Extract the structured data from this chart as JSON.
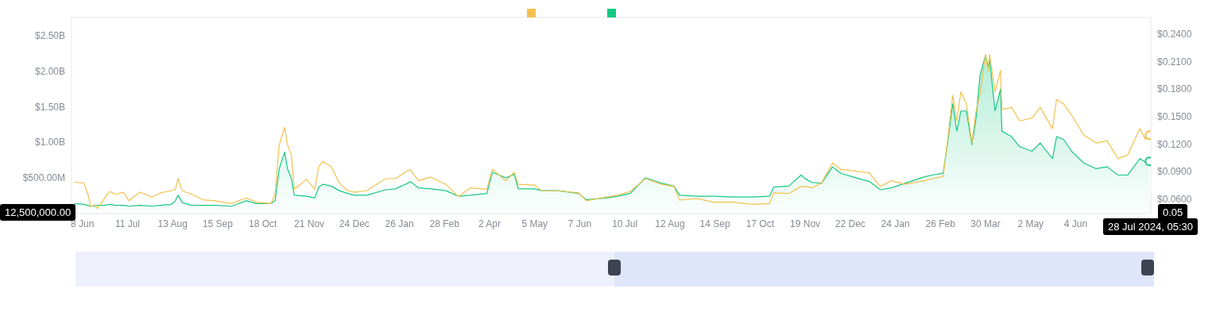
{
  "chart_data": {
    "type": "line",
    "x": [
      "2022-06-02",
      "2022-06-09",
      "2022-06-12",
      "2022-06-14",
      "2022-06-17",
      "2022-06-19",
      "2022-06-24",
      "2022-06-28",
      "2022-07-02",
      "2022-07-08",
      "2022-07-12",
      "2022-07-20",
      "2022-07-29",
      "2022-08-04",
      "2022-08-12",
      "2022-08-15",
      "2022-08-17",
      "2022-08-20",
      "2022-08-27",
      "2022-09-05",
      "2022-09-13",
      "2022-09-25",
      "2022-10-06",
      "2022-10-13",
      "2022-10-24",
      "2022-10-27",
      "2022-10-30",
      "2022-11-03",
      "2022-11-05",
      "2022-11-08",
      "2022-11-10",
      "2022-11-19",
      "2022-11-25",
      "2022-11-28",
      "2022-12-01",
      "2022-12-07",
      "2022-12-13",
      "2022-12-19",
      "2022-12-24",
      "2023-01-02",
      "2023-01-16",
      "2023-01-23",
      "2023-02-01",
      "2023-02-03",
      "2023-02-09",
      "2023-02-18",
      "2023-03-01",
      "2023-03-10",
      "2023-03-19",
      "2023-03-31",
      "2023-04-04",
      "2023-04-14",
      "2023-04-20",
      "2023-04-23",
      "2023-05-05",
      "2023-05-10",
      "2023-05-22",
      "2023-06-06",
      "2023-06-12",
      "2023-06-26",
      "2023-07-05",
      "2023-07-14",
      "2023-07-25",
      "2023-08-06",
      "2023-08-15",
      "2023-08-19",
      "2023-09-01",
      "2023-09-13",
      "2023-09-27",
      "2023-10-12",
      "2023-10-24",
      "2023-10-27",
      "2023-11-07",
      "2023-11-16",
      "2023-11-19",
      "2023-11-24",
      "2023-12-01",
      "2023-12-09",
      "2023-12-15",
      "2023-12-24",
      "2024-01-05",
      "2024-01-13",
      "2024-01-21",
      "2024-01-31",
      "2024-02-14",
      "2024-02-20",
      "2024-02-28",
      "2024-03-02",
      "2024-03-06",
      "2024-03-09",
      "2024-03-12",
      "2024-03-16",
      "2024-03-20",
      "2024-03-23",
      "2024-03-26",
      "2024-03-30",
      "2024-04-01",
      "2024-04-02",
      "2024-04-06",
      "2024-04-10",
      "2024-04-11",
      "2024-04-18",
      "2024-04-24",
      "2024-05-03",
      "2024-05-09",
      "2024-05-18",
      "2024-05-21",
      "2024-05-26",
      "2024-06-01",
      "2024-06-10",
      "2024-06-19",
      "2024-06-27",
      "2024-07-05",
      "2024-07-12",
      "2024-07-21",
      "2024-07-25",
      "2024-07-28"
    ],
    "series": [
      {
        "color": "#f2c24f",
        "values": [
          440000000.0,
          430000000.0,
          270000000.0,
          100000000.0,
          120000000.0,
          70000000.0,
          210000000.0,
          310000000.0,
          270000000.0,
          300000000.0,
          180000000.0,
          300000000.0,
          230000000.0,
          290000000.0,
          320000000.0,
          340000000.0,
          490000000.0,
          320000000.0,
          270000000.0,
          190000000.0,
          180000000.0,
          140000000.0,
          220000000.0,
          160000000.0,
          140000000.0,
          270000000.0,
          960000000.0,
          1210000000.0,
          970000000.0,
          820000000.0,
          340000000.0,
          480000000.0,
          340000000.0,
          660000000.0,
          730000000.0,
          660000000.0,
          430000000.0,
          320000000.0,
          300000000.0,
          320000000.0,
          490000000.0,
          490000000.0,
          600000000.0,
          610000000.0,
          460000000.0,
          510000000.0,
          410000000.0,
          240000000.0,
          360000000.0,
          340000000.0,
          620000000.0,
          460000000.0,
          580000000.0,
          410000000.0,
          400000000.0,
          320000000.0,
          320000000.0,
          290000000.0,
          180000000.0,
          230000000.0,
          260000000.0,
          310000000.0,
          490000000.0,
          410000000.0,
          380000000.0,
          190000000.0,
          210000000.0,
          160000000.0,
          160000000.0,
          130000000.0,
          140000000.0,
          290000000.0,
          280000000.0,
          380000000.0,
          380000000.0,
          360000000.0,
          430000000.0,
          710000000.0,
          620000000.0,
          600000000.0,
          570000000.0,
          380000000.0,
          460000000.0,
          410000000.0,
          460000000.0,
          490000000.0,
          520000000.0,
          990000000.0,
          1660000000.0,
          1300000000.0,
          1710000000.0,
          1540000000.0,
          990000000.0,
          1430000000.0,
          1680000000.0,
          2230000000.0,
          1990000000.0,
          2230000000.0,
          1710000000.0,
          2010000000.0,
          1460000000.0,
          1490000000.0,
          1300000000.0,
          1340000000.0,
          1490000000.0,
          1190000000.0,
          1600000000.0,
          1540000000.0,
          1380000000.0,
          1100000000.0,
          990000000.0,
          1020000000.0,
          770000000.0,
          820000000.0,
          1190000000.0,
          1040000000.0,
          1100000000.0
        ]
      },
      {
        "type": "area",
        "axis": "y2",
        "color": "#16c784",
        "values": [
          0.055,
          0.054,
          0.053,
          0.052,
          0.052,
          0.053,
          0.053,
          0.054,
          0.053,
          0.053,
          0.052,
          0.053,
          0.052,
          0.053,
          0.054,
          0.058,
          0.064,
          0.056,
          0.053,
          0.053,
          0.053,
          0.052,
          0.058,
          0.055,
          0.055,
          0.058,
          0.093,
          0.111,
          0.093,
          0.082,
          0.064,
          0.063,
          0.061,
          0.073,
          0.076,
          0.074,
          0.069,
          0.066,
          0.064,
          0.064,
          0.07,
          0.071,
          0.077,
          0.079,
          0.072,
          0.071,
          0.069,
          0.063,
          0.064,
          0.066,
          0.089,
          0.083,
          0.087,
          0.071,
          0.071,
          0.069,
          0.069,
          0.066,
          0.059,
          0.061,
          0.063,
          0.066,
          0.083,
          0.077,
          0.074,
          0.064,
          0.063,
          0.063,
          0.062,
          0.062,
          0.063,
          0.073,
          0.074,
          0.086,
          0.082,
          0.078,
          0.077,
          0.095,
          0.088,
          0.084,
          0.079,
          0.07,
          0.072,
          0.077,
          0.084,
          0.086,
          0.088,
          0.119,
          0.164,
          0.134,
          0.156,
          0.156,
          0.119,
          0.147,
          0.195,
          0.217,
          0.204,
          0.212,
          0.156,
          0.18,
          0.134,
          0.128,
          0.117,
          0.112,
          0.121,
          0.104,
          0.128,
          0.125,
          0.112,
          0.099,
          0.093,
          0.095,
          0.086,
          0.086,
          0.104,
          0.1,
          0.101
        ]
      }
    ],
    "xlim": [
      "2022-05-31",
      "2024-07-29"
    ],
    "xticks": [
      {
        "value": "2022-06-08",
        "label": "8 Jun"
      },
      {
        "value": "2022-07-11",
        "label": "11 Jul"
      },
      {
        "value": "2022-08-13",
        "label": "13 Aug"
      },
      {
        "value": "2022-09-15",
        "label": "15 Sep"
      },
      {
        "value": "2022-10-18",
        "label": "18 Oct"
      },
      {
        "value": "2022-11-21",
        "label": "21 Nov"
      },
      {
        "value": "2022-12-24",
        "label": "24 Dec"
      },
      {
        "value": "2023-01-26",
        "label": "26 Jan"
      },
      {
        "value": "2023-02-28",
        "label": "28 Feb"
      },
      {
        "value": "2023-04-02",
        "label": "2 Apr"
      },
      {
        "value": "2023-05-05",
        "label": "5 May"
      },
      {
        "value": "2023-06-07",
        "label": "7 Jun"
      },
      {
        "value": "2023-07-10",
        "label": "10 Jul"
      },
      {
        "value": "2023-08-12",
        "label": "12 Aug"
      },
      {
        "value": "2023-09-14",
        "label": "14 Sep"
      },
      {
        "value": "2023-10-17",
        "label": "17 Oct"
      },
      {
        "value": "2023-11-19",
        "label": "19 Nov"
      },
      {
        "value": "2023-12-22",
        "label": "22 Dec"
      },
      {
        "value": "2024-01-24",
        "label": "24 Jan"
      },
      {
        "value": "2024-02-26",
        "label": "26 Feb"
      },
      {
        "value": "2024-03-30",
        "label": "30 Mar"
      },
      {
        "value": "2024-05-02",
        "label": "2 May"
      },
      {
        "value": "2024-06-04",
        "label": "4 Jun"
      }
    ],
    "ylim": [
      0,
      2750000000.0
    ],
    "yticks": [
      {
        "value": 500000000.0,
        "label": "$500.00M"
      },
      {
        "value": 1000000000.0,
        "label": "$1.00B"
      },
      {
        "value": 1500000000.0,
        "label": "$1.50B"
      },
      {
        "value": 2000000000.0,
        "label": "$2.00B"
      },
      {
        "value": 2500000000.0,
        "label": "$2.50B"
      }
    ],
    "y2lim": [
      0.044,
      0.258
    ],
    "y2ticks": [
      {
        "value": 0.06,
        "label": "$0.0600"
      },
      {
        "value": 0.09,
        "label": "$0.0900"
      },
      {
        "value": 0.12,
        "label": "$0.1200"
      },
      {
        "value": 0.15,
        "label": "$0.1500"
      },
      {
        "value": 0.18,
        "label": "$0.1800"
      },
      {
        "value": 0.21,
        "label": "$0.2100"
      },
      {
        "value": 0.24,
        "label": "$0.2400"
      }
    ],
    "annotations": [
      "12,500,000.00",
      "0.05",
      "28 Jul 2024, 05:30"
    ]
  }
}
